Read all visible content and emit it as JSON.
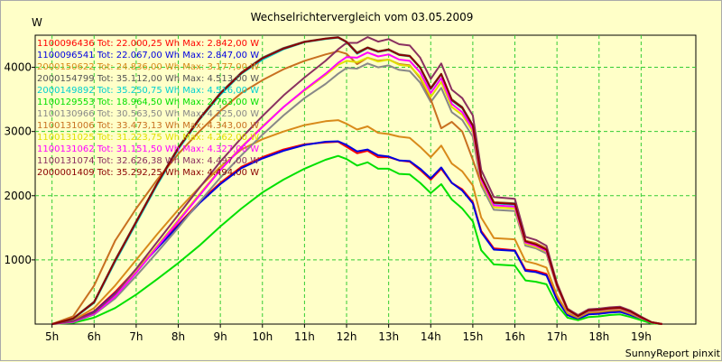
{
  "chart_data": {
    "type": "line",
    "title": "Wechselrichtervergleich vom 03.05.2009",
    "ylabel": "W",
    "xlabel": "",
    "footer": "SunnyReport pinxit",
    "xlim": [
      4.6,
      20.3
    ],
    "ylim": [
      0,
      4500
    ],
    "yticks": [
      1000,
      2000,
      3000,
      4000
    ],
    "xticks": [
      {
        "value": 5,
        "label": "5h"
      },
      {
        "value": 6,
        "label": "6h"
      },
      {
        "value": 7,
        "label": "7h"
      },
      {
        "value": 8,
        "label": "8h"
      },
      {
        "value": 9,
        "label": "9h"
      },
      {
        "value": 10,
        "label": "10h"
      },
      {
        "value": 11,
        "label": "11h"
      },
      {
        "value": 12,
        "label": "12h"
      },
      {
        "value": 13,
        "label": "13h"
      },
      {
        "value": 14,
        "label": "14h"
      },
      {
        "value": 15,
        "label": "15h"
      },
      {
        "value": 16,
        "label": "16h"
      },
      {
        "value": 17,
        "label": "17h"
      },
      {
        "value": 18,
        "label": "18h"
      },
      {
        "value": 19,
        "label": "19h"
      }
    ],
    "grid": true,
    "x": [
      5.0,
      5.5,
      6.0,
      6.5,
      7.0,
      7.5,
      8.0,
      8.5,
      9.0,
      9.5,
      10.0,
      10.5,
      11.0,
      11.5,
      11.8,
      12.0,
      12.25,
      12.5,
      12.75,
      13.0,
      13.25,
      13.5,
      13.75,
      14.0,
      14.25,
      14.5,
      14.75,
      15.0,
      15.2,
      15.5,
      16.0,
      16.25,
      16.5,
      16.75,
      17.0,
      17.25,
      17.5,
      17.75,
      18.0,
      18.25,
      18.5,
      18.75,
      19.0,
      19.25,
      19.5
    ],
    "series": [
      {
        "name": "1100096436",
        "legend": "1100096436 Tot: 22.000,25 Wh Max: 2.842,00 W",
        "color": "#ff0000",
        "values": [
          0,
          50,
          200,
          500,
          850,
          1200,
          1550,
          1900,
          2200,
          2450,
          2600,
          2720,
          2800,
          2830,
          2840,
          2760,
          2660,
          2700,
          2600,
          2600,
          2550,
          2530,
          2400,
          2250,
          2420,
          2200,
          2100,
          1900,
          1450,
          1180,
          1150,
          850,
          830,
          780,
          400,
          150,
          90,
          160,
          170,
          190,
          200,
          150,
          80,
          20,
          0
        ]
      },
      {
        "name": "1100096541",
        "legend": "1100096541 Tot: 22.067,00 Wh Max: 2.847,00 W",
        "color": "#0000e0",
        "values": [
          0,
          40,
          190,
          480,
          830,
          1180,
          1530,
          1880,
          2180,
          2430,
          2580,
          2700,
          2790,
          2840,
          2847,
          2790,
          2690,
          2720,
          2630,
          2610,
          2550,
          2540,
          2420,
          2270,
          2440,
          2200,
          2080,
          1880,
          1430,
          1160,
          1140,
          830,
          810,
          760,
          380,
          140,
          80,
          150,
          160,
          180,
          190,
          140,
          70,
          15,
          0
        ]
      },
      {
        "name": "2000150622",
        "legend": "2000150622 Tot: 24.836,00 Wh Max: 3.177,00 W",
        "color": "#d88a1a",
        "values": [
          0,
          60,
          250,
          600,
          1000,
          1400,
          1780,
          2130,
          2450,
          2720,
          2880,
          3000,
          3100,
          3160,
          3177,
          3120,
          3030,
          3080,
          2980,
          2960,
          2920,
          2900,
          2760,
          2600,
          2780,
          2500,
          2380,
          2160,
          1660,
          1340,
          1320,
          980,
          940,
          880,
          450,
          170,
          100,
          180,
          190,
          210,
          220,
          160,
          90,
          20,
          0
        ]
      },
      {
        "name": "2000154799",
        "legend": "2000154799 Tot: 35.112,00 Wh Max: 4.513,00 W",
        "color": "#555555",
        "values": [
          0,
          90,
          350,
          1000,
          1600,
          2200,
          2750,
          3200,
          3600,
          3920,
          4150,
          4300,
          4400,
          4450,
          4470,
          4400,
          4230,
          4310,
          4250,
          4280,
          4200,
          4180,
          4000,
          3680,
          3900,
          3500,
          3380,
          3100,
          2300,
          1900,
          1880,
          1300,
          1250,
          1170,
          620,
          230,
          130,
          220,
          230,
          250,
          260,
          200,
          110,
          30,
          0
        ]
      },
      {
        "name": "2000149892",
        "legend": "2000149892 Tot: 35.250,75 Wh Max: 4.516,00 W",
        "color": "#00d0d0",
        "values": [
          0,
          80,
          330,
          970,
          1570,
          2170,
          2720,
          3180,
          3570,
          3900,
          4120,
          4280,
          4390,
          4440,
          4460,
          4390,
          4210,
          4300,
          4240,
          4270,
          4190,
          4170,
          3990,
          3660,
          3890,
          3480,
          3360,
          3080,
          2280,
          1880,
          1860,
          1280,
          1230,
          1150,
          600,
          220,
          120,
          210,
          220,
          240,
          250,
          190,
          100,
          25,
          0
        ]
      },
      {
        "name": "1100129553",
        "legend": "1100129553 Tot: 18.964,50 Wh Max: 2.763,00 W",
        "color": "#00e000",
        "values": [
          0,
          20,
          100,
          250,
          460,
          700,
          950,
          1220,
          1520,
          1800,
          2050,
          2250,
          2420,
          2560,
          2620,
          2570,
          2470,
          2520,
          2420,
          2420,
          2340,
          2330,
          2200,
          2040,
          2180,
          1940,
          1800,
          1600,
          1150,
          930,
          910,
          680,
          660,
          620,
          300,
          100,
          60,
          110,
          120,
          140,
          150,
          110,
          60,
          10,
          0
        ]
      },
      {
        "name": "1100130966",
        "legend": "1100130966 Tot: 30.563,50 Wh Max: 4.225,00 W",
        "color": "#888888",
        "values": [
          0,
          30,
          150,
          400,
          750,
          1120,
          1500,
          1900,
          2280,
          2630,
          2950,
          3250,
          3520,
          3740,
          3900,
          3990,
          3980,
          4060,
          4000,
          4030,
          3960,
          3940,
          3760,
          3460,
          3680,
          3300,
          3180,
          2920,
          2160,
          1780,
          1760,
          1220,
          1180,
          1100,
          580,
          210,
          120,
          200,
          210,
          230,
          240,
          180,
          100,
          25,
          0
        ]
      },
      {
        "name": "1100131006",
        "legend": "1100131006 Tot: 33.473,13 Wh Max: 4.343,00 W",
        "color": "#c87020",
        "values": [
          0,
          120,
          600,
          1300,
          1800,
          2250,
          2650,
          3000,
          3320,
          3600,
          3800,
          3970,
          4100,
          4200,
          4250,
          4210,
          4050,
          4150,
          4100,
          4120,
          4050,
          4030,
          3830,
          3500,
          3050,
          3150,
          3000,
          2560,
          2180,
          1900,
          1870,
          1300,
          1260,
          1180,
          620,
          230,
          130,
          220,
          230,
          250,
          260,
          200,
          110,
          30,
          0
        ]
      },
      {
        "name": "1100131025",
        "legend": "1100131025 Tot: 31.223,75 Wh Max: 4.262,00 W",
        "color": "#e0e000",
        "values": [
          0,
          40,
          170,
          450,
          820,
          1220,
          1620,
          2020,
          2410,
          2760,
          3080,
          3380,
          3640,
          3880,
          4040,
          4100,
          4080,
          4150,
          4090,
          4120,
          4040,
          4020,
          3850,
          3540,
          3770,
          3380,
          3260,
          3000,
          2220,
          1820,
          1800,
          1250,
          1200,
          1130,
          590,
          215,
          125,
          205,
          215,
          235,
          245,
          185,
          100,
          25,
          0
        ]
      },
      {
        "name": "1100131062",
        "legend": "1100131062 Tot: 31.151,50 Wh Max: 4.327,00 W",
        "color": "#ff00ff",
        "values": [
          0,
          35,
          160,
          430,
          800,
          1200,
          1600,
          2000,
          2400,
          2750,
          3070,
          3380,
          3650,
          3900,
          4070,
          4160,
          4150,
          4230,
          4170,
          4200,
          4120,
          4100,
          3920,
          3600,
          3830,
          3430,
          3300,
          3040,
          2250,
          1850,
          1830,
          1270,
          1220,
          1140,
          600,
          220,
          125,
          210,
          220,
          240,
          250,
          190,
          100,
          25,
          0
        ]
      },
      {
        "name": "1100131074",
        "legend": "1100131074 Tot: 32.626,38 Wh Max: 4.497,00 W",
        "color": "#8a3060",
        "values": [
          0,
          45,
          180,
          470,
          860,
          1280,
          1700,
          2120,
          2530,
          2900,
          3240,
          3560,
          3840,
          4100,
          4280,
          4380,
          4380,
          4470,
          4400,
          4440,
          4360,
          4340,
          4150,
          3820,
          4060,
          3650,
          3520,
          3250,
          2400,
          1980,
          1950,
          1360,
          1310,
          1220,
          640,
          240,
          140,
          230,
          240,
          260,
          270,
          210,
          115,
          30,
          0
        ]
      },
      {
        "name": "2000001409",
        "legend": "2000001409 Tot: 35.292,25 Wh Max: 4.494,00 W",
        "color": "#8b0000",
        "values": [
          0,
          85,
          340,
          990,
          1590,
          2190,
          2740,
          3190,
          3590,
          3910,
          4140,
          4290,
          4395,
          4445,
          4465,
          4395,
          4220,
          4305,
          4245,
          4275,
          4195,
          4175,
          3995,
          3670,
          3895,
          3490,
          3370,
          3090,
          2290,
          1890,
          1870,
          1290,
          1240,
          1160,
          610,
          225,
          125,
          215,
          225,
          245,
          255,
          195,
          105,
          28,
          0
        ]
      }
    ]
  }
}
